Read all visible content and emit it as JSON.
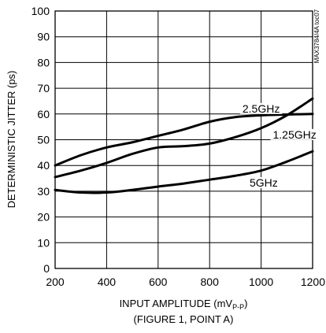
{
  "chart_data": {
    "type": "line",
    "xlabel": "INPUT AMPLITUDE (mVP-P)",
    "xlabel_main": "INPUT AMPLITUDE (mV",
    "xlabel_sub": "P-P",
    "xlabel_tail": ")",
    "xlabel_line2": "(FIGURE 1, POINT A)",
    "ylabel": "DETERMINISTIC JITTER (ps)",
    "watermark": "MAX3784/4A toc07",
    "xlim": [
      200,
      1200
    ],
    "ylim": [
      0,
      100
    ],
    "xticks": [
      "200",
      "400",
      "600",
      "800",
      "1000",
      "1200"
    ],
    "yticks": [
      "0",
      "10",
      "20",
      "30",
      "40",
      "50",
      "60",
      "70",
      "80",
      "90",
      "100"
    ],
    "grid": true,
    "series": [
      {
        "name": "2.5GHz",
        "label_at": [
          1000,
          60.6
        ],
        "x": [
          200,
          300,
          400,
          500,
          600,
          700,
          800,
          900,
          1000,
          1100,
          1200
        ],
        "values": [
          40,
          44,
          47,
          49,
          51.5,
          54,
          57,
          58.8,
          59.5,
          59.8,
          60
        ]
      },
      {
        "name": "1.25GHz",
        "label_at": [
          1130,
          50.5
        ],
        "x": [
          200,
          300,
          400,
          500,
          600,
          700,
          800,
          900,
          1000,
          1100,
          1200
        ],
        "values": [
          35.5,
          38,
          41,
          44.5,
          47,
          47.5,
          48.5,
          51,
          54.5,
          59.5,
          66
        ]
      },
      {
        "name": "5GHz",
        "label_at": [
          1010,
          31.8
        ],
        "x": [
          200,
          300,
          400,
          500,
          600,
          700,
          800,
          900,
          1000,
          1100,
          1200
        ],
        "values": [
          30.5,
          29.5,
          29.5,
          30.5,
          31.8,
          33,
          34.5,
          36,
          38,
          41.5,
          45.5
        ]
      }
    ]
  }
}
